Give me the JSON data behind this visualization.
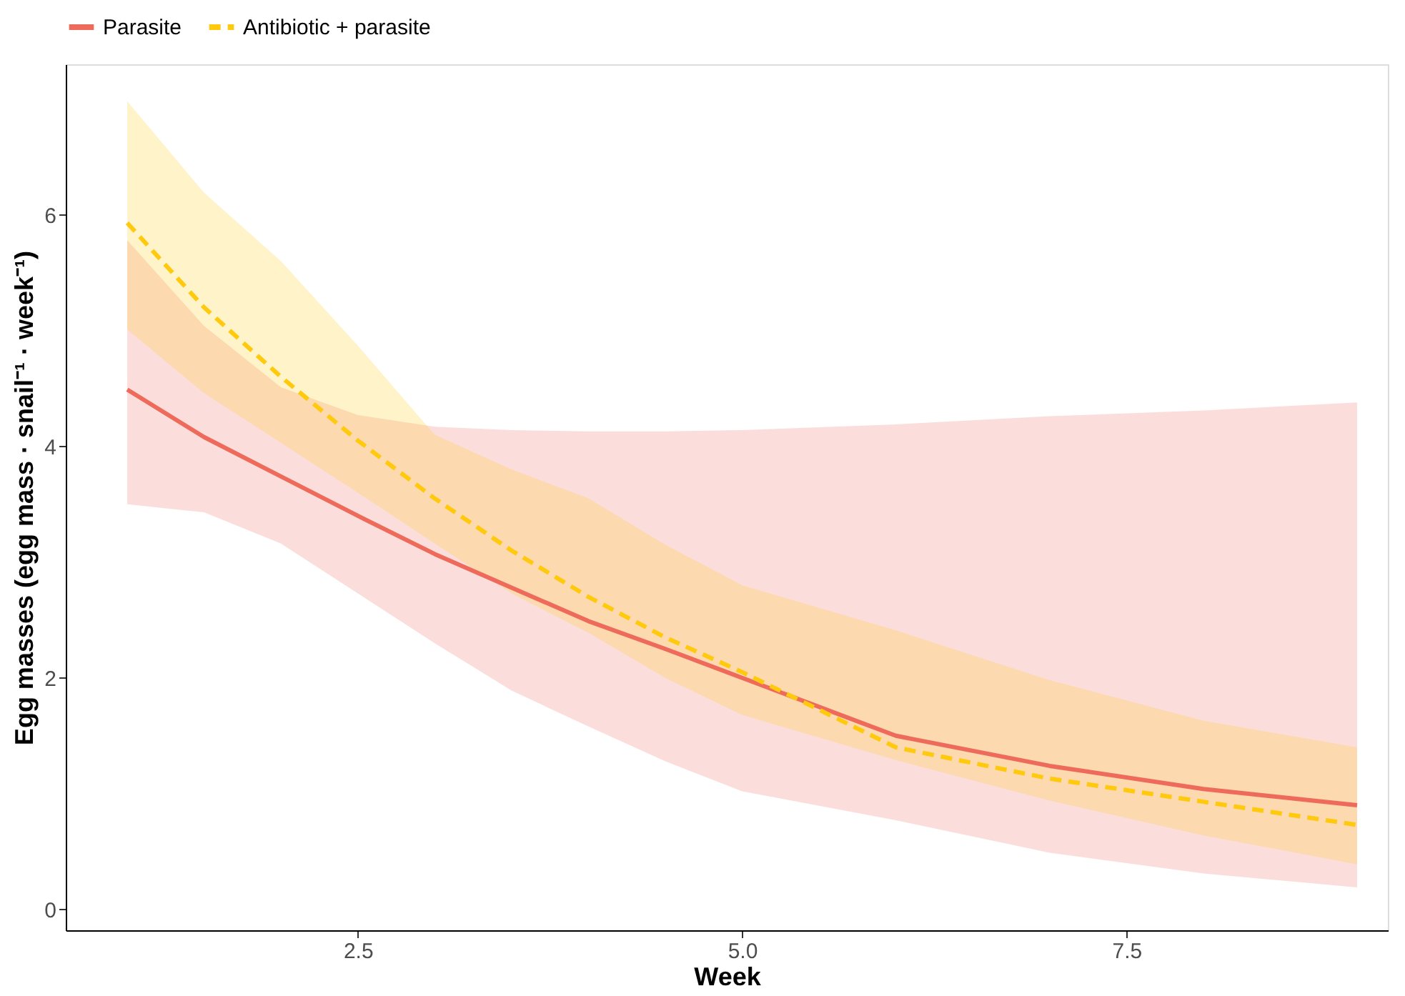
{
  "chart_data": {
    "type": "line",
    "xlabel": "Week",
    "ylabel": "Egg masses (egg mass · snail⁻¹ · week⁻¹)",
    "x": [
      1,
      1.5,
      2,
      2.5,
      3,
      3.5,
      4,
      4.5,
      5,
      6,
      7,
      8,
      9
    ],
    "series": [
      {
        "name": "Parasite",
        "color": "#ee6a5a",
        "line_style": "solid",
        "values": [
          4.49,
          4.08,
          3.74,
          3.4,
          3.07,
          2.78,
          2.49,
          2.25,
          2.0,
          1.5,
          1.24,
          1.04,
          0.9
        ],
        "lower": [
          3.5,
          3.43,
          3.16,
          2.73,
          2.3,
          1.89,
          1.58,
          1.28,
          1.02,
          0.77,
          0.49,
          0.31,
          0.19
        ],
        "upper": [
          5.78,
          5.04,
          4.51,
          4.27,
          4.17,
          4.14,
          4.13,
          4.13,
          4.14,
          4.19,
          4.26,
          4.31,
          4.38
        ]
      },
      {
        "name": "Antibiotic + parasite",
        "color": "#ffc90e",
        "line_style": "dashed",
        "values": [
          5.93,
          5.2,
          4.6,
          4.05,
          3.55,
          3.1,
          2.7,
          2.35,
          2.05,
          1.4,
          1.13,
          0.93,
          0.73
        ],
        "lower": [
          5.01,
          4.46,
          4.03,
          3.6,
          3.16,
          2.73,
          2.39,
          2.0,
          1.68,
          1.29,
          0.94,
          0.64,
          0.39
        ],
        "upper": [
          6.98,
          6.19,
          5.6,
          4.87,
          4.1,
          3.8,
          3.55,
          3.15,
          2.8,
          2.41,
          1.98,
          1.63,
          1.4
        ]
      }
    ],
    "xlim": [
      0.6,
      9.2
    ],
    "xticks": [
      2.5,
      {
        "value": 5,
        "label": "5.0"
      },
      7.5
    ],
    "ylim": [
      -0.18,
      7.3
    ],
    "yticks": [
      0,
      2,
      4,
      6
    ],
    "grid": false,
    "legend": "top"
  }
}
